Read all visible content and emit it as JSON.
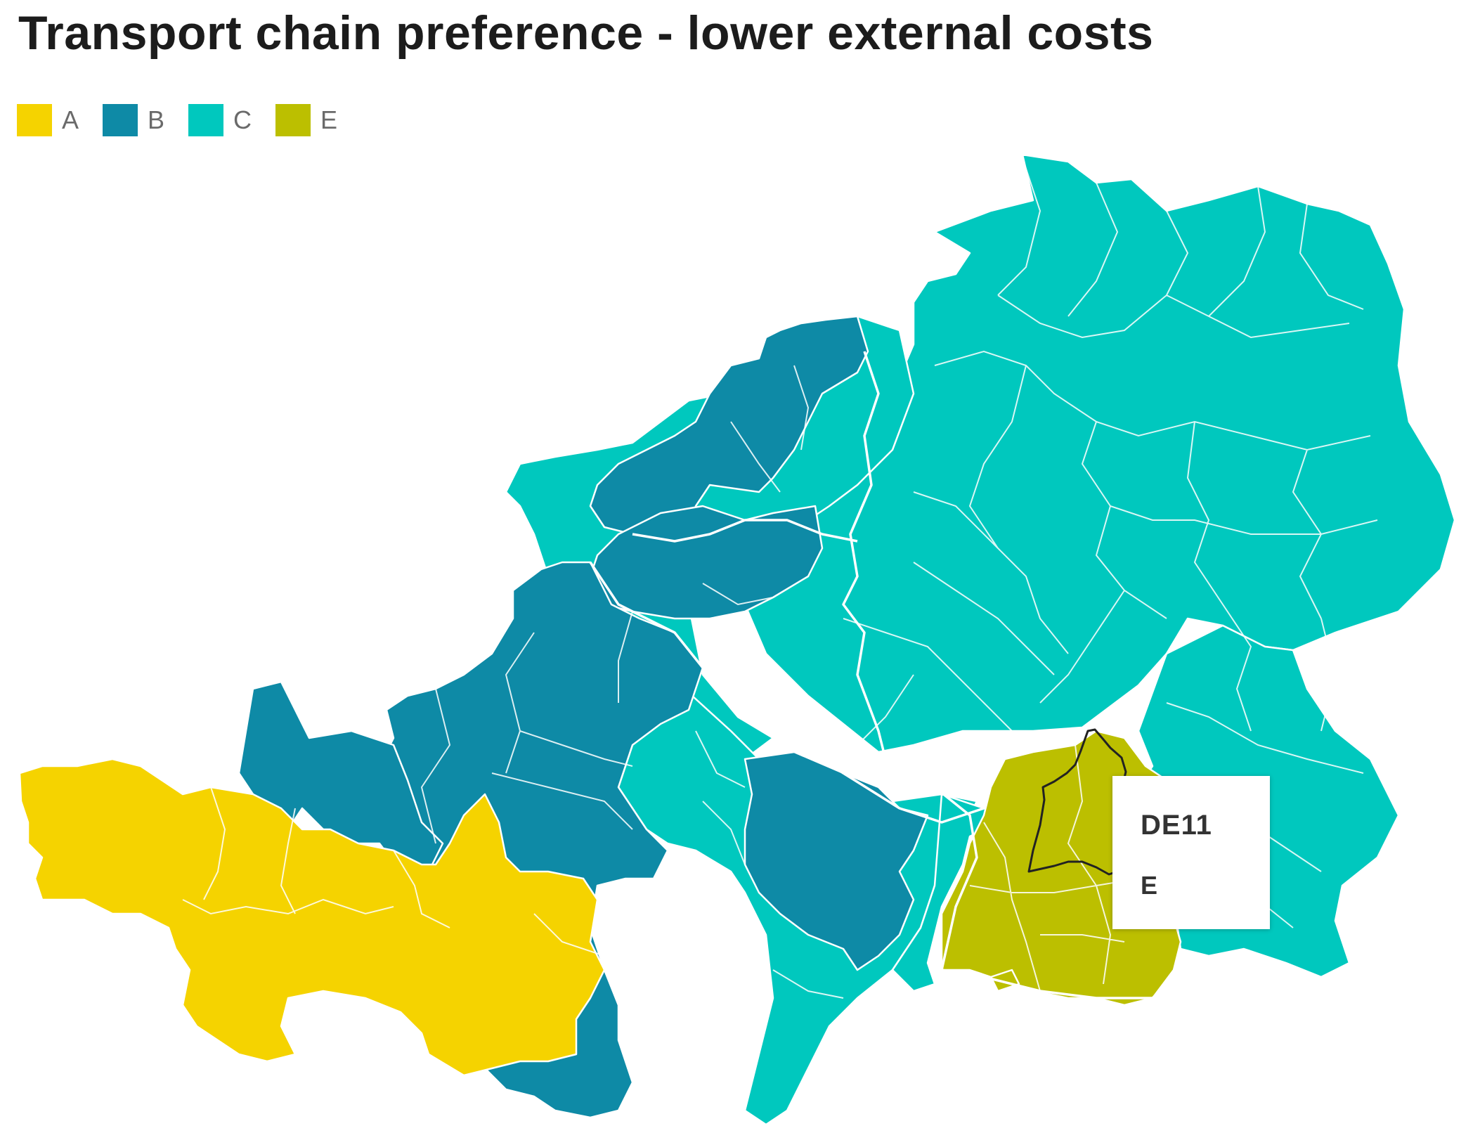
{
  "title": "Transport chain preference - lower external costs",
  "legend": [
    {
      "label": "A",
      "color": "#f5d300"
    },
    {
      "label": "B",
      "color": "#0e8aa6"
    },
    {
      "label": "C",
      "color": "#00c8be"
    },
    {
      "label": "E",
      "color": "#bcbf00"
    }
  ],
  "tooltip": {
    "region": "DE11",
    "value": "E"
  }
}
